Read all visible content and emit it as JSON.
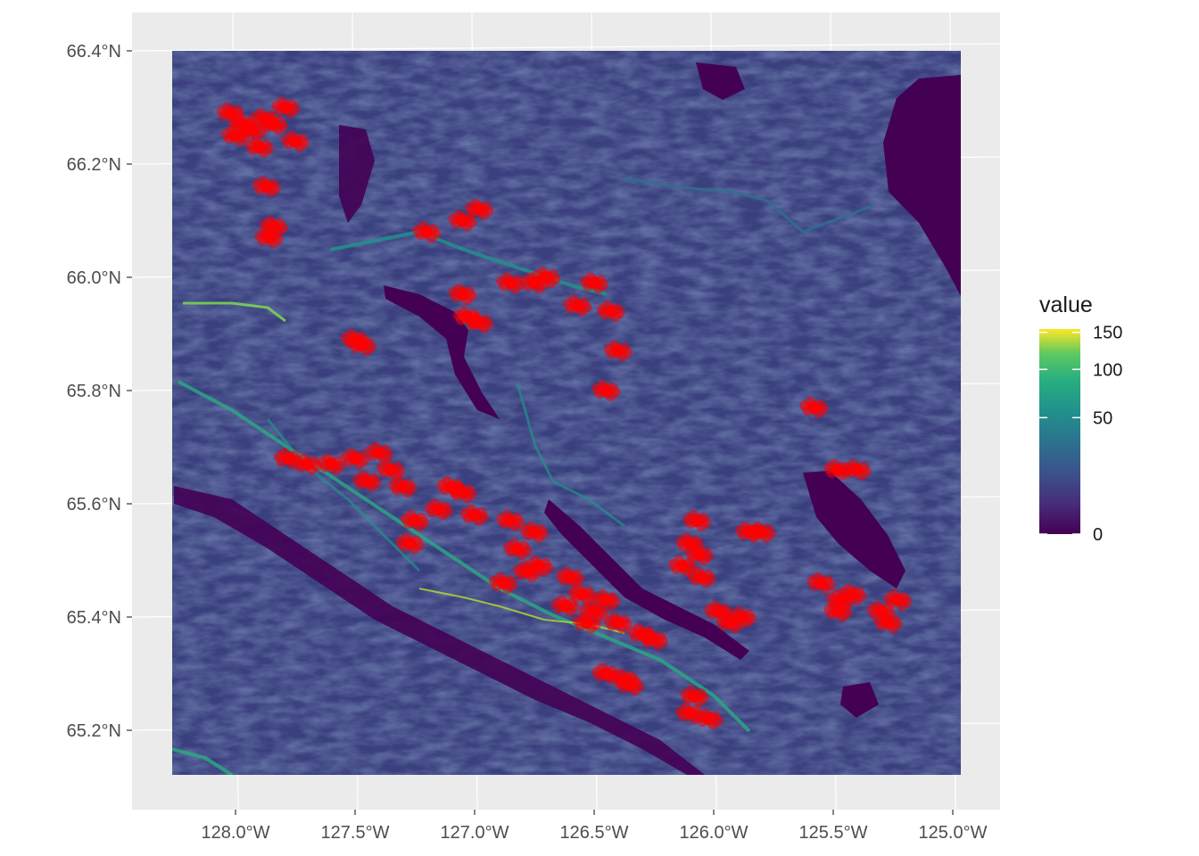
{
  "chart_data": {
    "type": "heatmap",
    "title": "",
    "xlabel": "",
    "ylabel": "",
    "x_ticks": [
      {
        "value": -128.0,
        "label": "128.0°W"
      },
      {
        "value": -127.5,
        "label": "127.5°W"
      },
      {
        "value": -127.0,
        "label": "127.0°W"
      },
      {
        "value": -126.5,
        "label": "126.5°W"
      },
      {
        "value": -126.0,
        "label": "126.0°W"
      },
      {
        "value": -125.5,
        "label": "125.5°W"
      },
      {
        "value": -125.0,
        "label": "125.0°W"
      }
    ],
    "y_ticks": [
      {
        "value": 66.4,
        "label": "66.4°N"
      },
      {
        "value": 66.2,
        "label": "66.2°N"
      },
      {
        "value": 66.0,
        "label": "66.0°N"
      },
      {
        "value": 65.8,
        "label": "65.8°N"
      },
      {
        "value": 65.6,
        "label": "65.6°N"
      },
      {
        "value": 65.4,
        "label": "65.4°N"
      },
      {
        "value": 65.2,
        "label": "65.2°N"
      }
    ],
    "xlim": [
      -128.42,
      -124.95
    ],
    "ylim": [
      65.07,
      66.47
    ],
    "raster_extent": {
      "lon": [
        -128.26,
        -124.97
      ],
      "lat": [
        65.12,
        66.39
      ]
    },
    "grid": true,
    "legend": {
      "title": "value",
      "position": "right",
      "scale": "viridis",
      "breaks": [
        {
          "value": 150,
          "label": "150"
        },
        {
          "value": 100,
          "label": "100"
        },
        {
          "value": 50,
          "label": "50"
        },
        {
          "value": 0,
          "label": "0"
        }
      ],
      "colors": [
        "#440154",
        "#3b528b",
        "#21918c",
        "#5ec962",
        "#fde725"
      ]
    },
    "points": {
      "color": "#ff0000",
      "series": [
        {
          "lon": -128.02,
          "lat": 66.29
        },
        {
          "lon": -127.97,
          "lat": 66.27
        },
        {
          "lon": -127.93,
          "lat": 66.26
        },
        {
          "lon": -127.88,
          "lat": 66.28
        },
        {
          "lon": -127.84,
          "lat": 66.27
        },
        {
          "lon": -127.79,
          "lat": 66.3
        },
        {
          "lon": -128.0,
          "lat": 66.25
        },
        {
          "lon": -127.9,
          "lat": 66.23
        },
        {
          "lon": -127.75,
          "lat": 66.24
        },
        {
          "lon": -127.87,
          "lat": 66.16
        },
        {
          "lon": -127.84,
          "lat": 66.09
        },
        {
          "lon": -127.86,
          "lat": 66.07
        },
        {
          "lon": -127.5,
          "lat": 65.89
        },
        {
          "lon": -127.47,
          "lat": 65.88
        },
        {
          "lon": -127.2,
          "lat": 66.08
        },
        {
          "lon": -127.05,
          "lat": 66.1
        },
        {
          "lon": -126.98,
          "lat": 66.12
        },
        {
          "lon": -127.05,
          "lat": 65.97
        },
        {
          "lon": -127.03,
          "lat": 65.93
        },
        {
          "lon": -126.98,
          "lat": 65.92
        },
        {
          "lon": -126.85,
          "lat": 65.99
        },
        {
          "lon": -126.75,
          "lat": 65.99
        },
        {
          "lon": -126.7,
          "lat": 66.0
        },
        {
          "lon": -126.57,
          "lat": 65.95
        },
        {
          "lon": -126.43,
          "lat": 65.94
        },
        {
          "lon": -126.4,
          "lat": 65.87
        },
        {
          "lon": -126.5,
          "lat": 65.99
        },
        {
          "lon": -126.45,
          "lat": 65.8
        },
        {
          "lon": -127.78,
          "lat": 65.68
        },
        {
          "lon": -127.7,
          "lat": 65.67
        },
        {
          "lon": -127.6,
          "lat": 65.67
        },
        {
          "lon": -127.5,
          "lat": 65.68
        },
        {
          "lon": -127.4,
          "lat": 65.69
        },
        {
          "lon": -127.35,
          "lat": 65.66
        },
        {
          "lon": -127.3,
          "lat": 65.63
        },
        {
          "lon": -127.45,
          "lat": 65.64
        },
        {
          "lon": -127.25,
          "lat": 65.57
        },
        {
          "lon": -127.27,
          "lat": 65.53
        },
        {
          "lon": -127.1,
          "lat": 65.63
        },
        {
          "lon": -127.05,
          "lat": 65.62
        },
        {
          "lon": -127.15,
          "lat": 65.59
        },
        {
          "lon": -127.0,
          "lat": 65.58
        },
        {
          "lon": -126.85,
          "lat": 65.57
        },
        {
          "lon": -126.75,
          "lat": 65.55
        },
        {
          "lon": -126.82,
          "lat": 65.52
        },
        {
          "lon": -126.78,
          "lat": 65.48
        },
        {
          "lon": -126.73,
          "lat": 65.49
        },
        {
          "lon": -126.88,
          "lat": 65.46
        },
        {
          "lon": -126.6,
          "lat": 65.47
        },
        {
          "lon": -126.55,
          "lat": 65.44
        },
        {
          "lon": -126.62,
          "lat": 65.42
        },
        {
          "lon": -126.5,
          "lat": 65.41
        },
        {
          "lon": -126.45,
          "lat": 65.43
        },
        {
          "lon": -126.53,
          "lat": 65.39
        },
        {
          "lon": -126.4,
          "lat": 65.39
        },
        {
          "lon": -126.3,
          "lat": 65.37
        },
        {
          "lon": -126.25,
          "lat": 65.36
        },
        {
          "lon": -126.45,
          "lat": 65.3
        },
        {
          "lon": -126.35,
          "lat": 65.28
        },
        {
          "lon": -126.37,
          "lat": 65.29
        },
        {
          "lon": -126.08,
          "lat": 65.26
        },
        {
          "lon": -126.1,
          "lat": 65.23
        },
        {
          "lon": -126.02,
          "lat": 65.22
        },
        {
          "lon": -126.1,
          "lat": 65.53
        },
        {
          "lon": -126.06,
          "lat": 65.51
        },
        {
          "lon": -126.13,
          "lat": 65.49
        },
        {
          "lon": -126.05,
          "lat": 65.47
        },
        {
          "lon": -126.07,
          "lat": 65.57
        },
        {
          "lon": -125.98,
          "lat": 65.41
        },
        {
          "lon": -125.93,
          "lat": 65.39
        },
        {
          "lon": -125.88,
          "lat": 65.4
        },
        {
          "lon": -125.85,
          "lat": 65.55
        },
        {
          "lon": -125.8,
          "lat": 65.55
        },
        {
          "lon": -125.55,
          "lat": 65.46
        },
        {
          "lon": -125.47,
          "lat": 65.43
        },
        {
          "lon": -125.42,
          "lat": 65.44
        },
        {
          "lon": -125.48,
          "lat": 65.41
        },
        {
          "lon": -125.3,
          "lat": 65.41
        },
        {
          "lon": -125.27,
          "lat": 65.39
        },
        {
          "lon": -125.23,
          "lat": 65.43
        },
        {
          "lon": -125.58,
          "lat": 65.77
        },
        {
          "lon": -125.48,
          "lat": 65.66
        },
        {
          "lon": -125.4,
          "lat": 65.66
        }
      ]
    }
  }
}
